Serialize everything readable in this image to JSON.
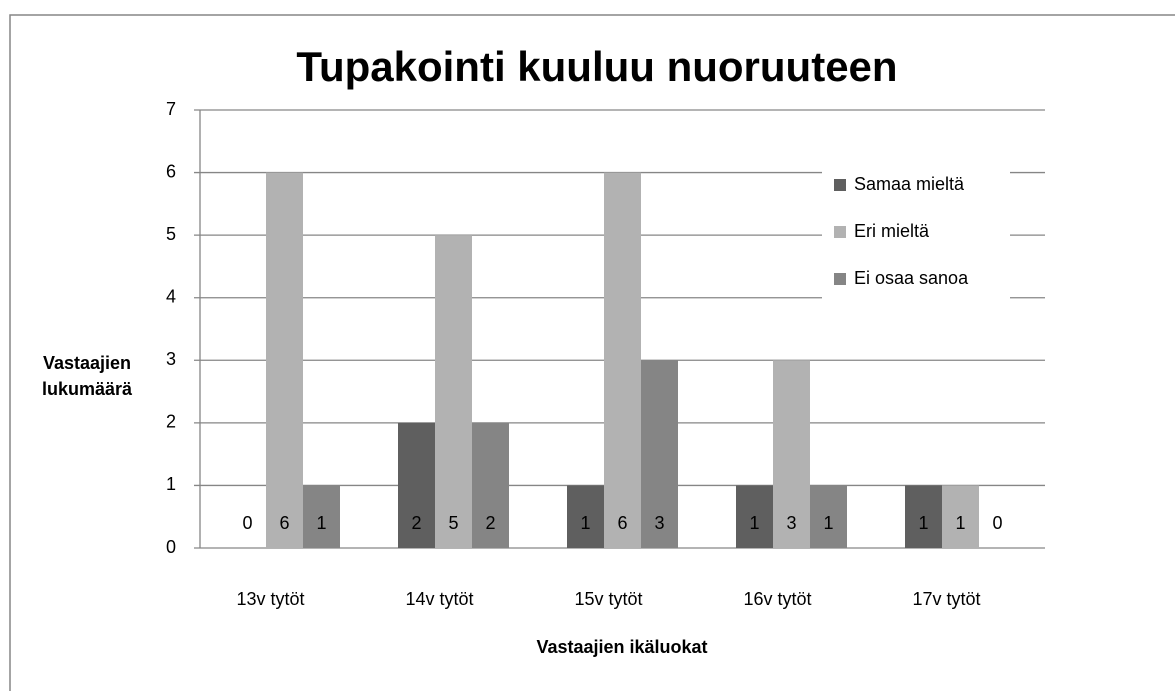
{
  "chart_data": {
    "type": "bar",
    "title": "Tupakointi kuuluu nuoruuteen",
    "x_label": "Vastaajien ikäluokat",
    "y_label": "Vastaajien lukumäärä",
    "categories": [
      "13v tytöt",
      "14v tytöt",
      "15v tytöt",
      "16v tytöt",
      "17v tytöt"
    ],
    "series": [
      {
        "name": "Samaa mieltä",
        "color": "#5f5f5f",
        "values": [
          0,
          2,
          1,
          1,
          1
        ]
      },
      {
        "name": "Eri mieltä",
        "color": "#b2b2b2",
        "values": [
          6,
          5,
          6,
          3,
          1
        ]
      },
      {
        "name": "Ei osaa sanoa",
        "color": "#858585",
        "values": [
          1,
          2,
          3,
          1,
          0
        ]
      }
    ],
    "ylim": [
      0,
      7
    ],
    "yticks": [
      0,
      1,
      2,
      3,
      4,
      5,
      6,
      7
    ],
    "grid": true,
    "legend": "right"
  }
}
